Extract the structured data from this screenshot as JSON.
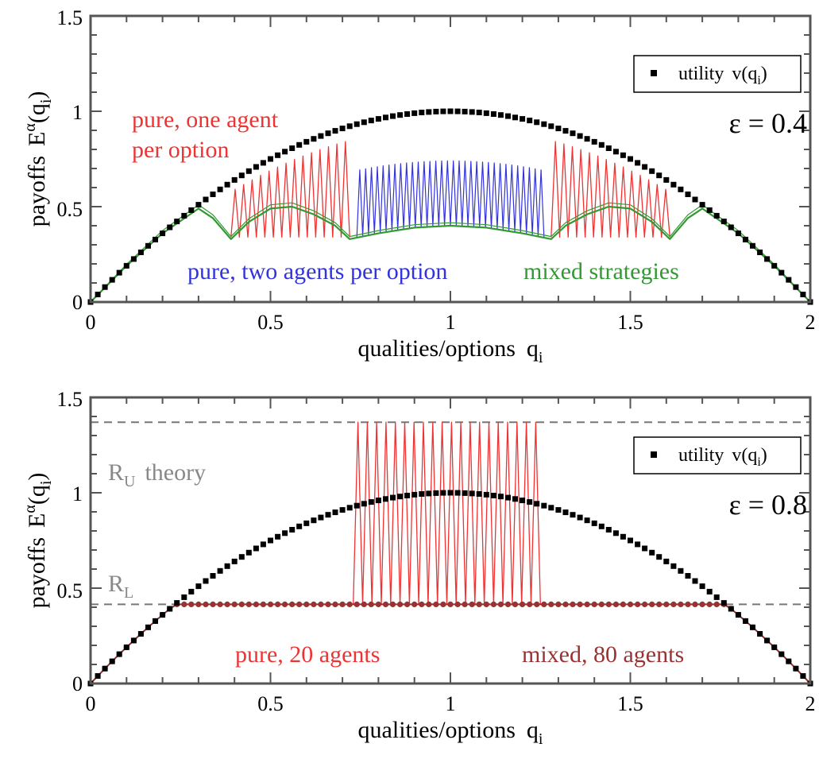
{
  "chart_data": [
    {
      "type": "line",
      "xlabel": {
        "text": "qualities/options",
        "var": "q",
        "sub": "i"
      },
      "ylabel": {
        "text": "payoffs",
        "var": "E",
        "sup": "α",
        "arg": "(q",
        "argsub": "i",
        "argclose": ")"
      },
      "xlim": [
        0,
        2
      ],
      "ylim": [
        0,
        1.5
      ],
      "xticks": [
        "0",
        "0.5",
        "1",
        "1.5",
        "2"
      ],
      "yticks": [
        "0",
        "0.5",
        "1",
        "1.5"
      ],
      "epsilon_label": "ε = 0.4",
      "legend": {
        "label": "utility",
        "func": "v(q",
        "sub": "i",
        "close": ")",
        "placement": "top-right"
      },
      "annotations": [
        {
          "lines": [
            "pure, one agent",
            "per option"
          ],
          "color": "#ee3333"
        },
        {
          "lines": [
            "pure, two agents per option"
          ],
          "color": "#3333dd"
        },
        {
          "lines": [
            "mixed strategies"
          ],
          "color": "#339933"
        }
      ],
      "series": [
        {
          "key": "utility",
          "kind": "scatter",
          "color": "#000000",
          "formula": "v(q) = q(2 - q)",
          "n_points": 101,
          "x_range": [
            0,
            2
          ]
        },
        {
          "key": "pure_one",
          "kind": "zigzag",
          "color": "#ee3333",
          "segments": [
            [
              0.39,
              0.72
            ],
            [
              1.28,
              1.61
            ]
          ],
          "low_level": 0.34,
          "high_formula": "0.92 * v(q)"
        },
        {
          "key": "pure_two",
          "kind": "zigzag",
          "color": "#3333dd",
          "segments": [
            [
              0.74,
              1.26
            ]
          ],
          "low_level": 0.34,
          "high_formula": "0.74 * v(q)"
        },
        {
          "key": "mixed",
          "kind": "line",
          "color": "#339933",
          "approx_points": [
            [
              0,
              0
            ],
            [
              0.1,
              0.19
            ],
            [
              0.2,
              0.36
            ],
            [
              0.3,
              0.49
            ],
            [
              0.34,
              0.44
            ],
            [
              0.39,
              0.33
            ],
            [
              0.44,
              0.42
            ],
            [
              0.5,
              0.49
            ],
            [
              0.56,
              0.5
            ],
            [
              0.62,
              0.46
            ],
            [
              0.68,
              0.4
            ],
            [
              0.72,
              0.33
            ],
            [
              0.8,
              0.36
            ],
            [
              0.9,
              0.39
            ],
            [
              1.0,
              0.4
            ],
            [
              1.1,
              0.39
            ],
            [
              1.2,
              0.36
            ],
            [
              1.28,
              0.33
            ],
            [
              1.32,
              0.4
            ],
            [
              1.38,
              0.46
            ],
            [
              1.44,
              0.5
            ],
            [
              1.5,
              0.49
            ],
            [
              1.56,
              0.42
            ],
            [
              1.61,
              0.33
            ],
            [
              1.66,
              0.44
            ],
            [
              1.7,
              0.49
            ],
            [
              1.8,
              0.36
            ],
            [
              1.9,
              0.19
            ],
            [
              2.0,
              0.0
            ]
          ]
        }
      ]
    },
    {
      "type": "line",
      "xlabel": {
        "text": "qualities/options",
        "var": "q",
        "sub": "i"
      },
      "ylabel": {
        "text": "payoffs",
        "var": "E",
        "sup": "α",
        "arg": "(q",
        "argsub": "i",
        "argclose": ")"
      },
      "xlim": [
        0,
        2
      ],
      "ylim": [
        0,
        1.5
      ],
      "xticks": [
        "0",
        "0.5",
        "1",
        "1.5",
        "2"
      ],
      "yticks": [
        "0",
        "0.5",
        "1",
        "1.5"
      ],
      "epsilon_label": "ε = 0.8",
      "legend": {
        "label": "utility",
        "func": "v(q",
        "sub": "i",
        "close": ")",
        "placement": "top-right"
      },
      "reference_lines": [
        {
          "name": "R",
          "sub": "U",
          "suffix": "theory",
          "y": 1.37,
          "color": "#777777"
        },
        {
          "name": "R",
          "sub": "L",
          "suffix": "",
          "y": 0.415,
          "color": "#777777"
        }
      ],
      "annotations": [
        {
          "lines": [
            "pure, 20 agents"
          ],
          "color": "#ee3333"
        },
        {
          "lines": [
            "mixed, 80 agents"
          ],
          "color": "#993333"
        }
      ],
      "series": [
        {
          "key": "utility",
          "kind": "scatter",
          "color": "#000000",
          "formula": "v(q) = q(2 - q)",
          "n_points": 101,
          "x_range": [
            0,
            2
          ]
        },
        {
          "key": "pure",
          "kind": "zigzag",
          "color": "#ee3333",
          "segments": [
            [
              0.73,
              1.25
            ]
          ],
          "low_level": 0.415,
          "high_level": 1.37,
          "n_peaks": 20
        },
        {
          "key": "mixed",
          "kind": "dots_line",
          "color": "#993333",
          "formula": "min(v(q), 0.415)",
          "n_points": 101,
          "x_range": [
            0,
            2
          ]
        }
      ]
    }
  ]
}
